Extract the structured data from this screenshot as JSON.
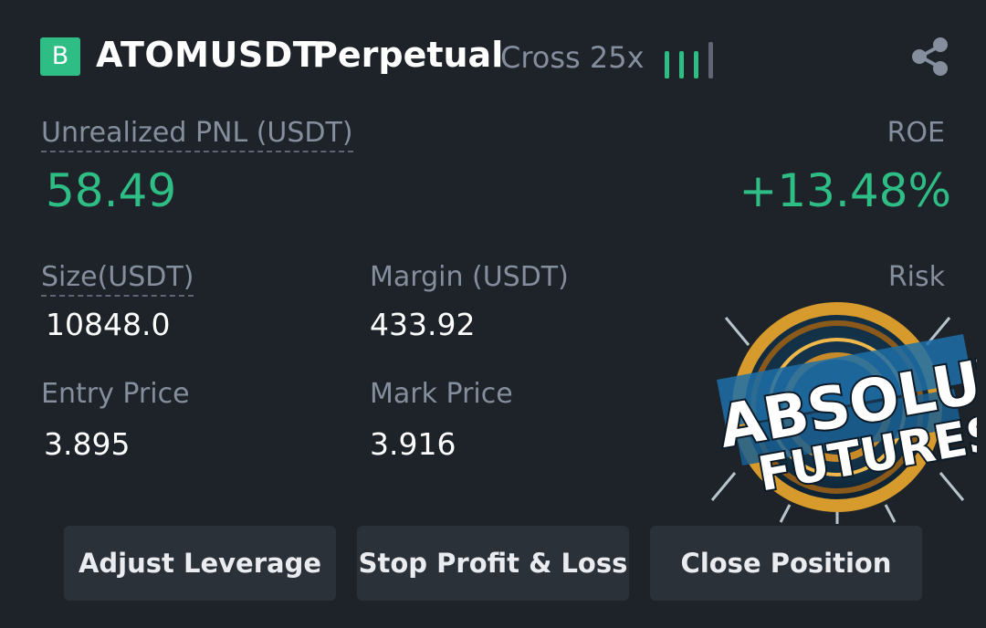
{
  "header": {
    "badge": "B",
    "symbol": "ATOMUSDT",
    "contract": "Perpetual",
    "margin_mode": "Cross 25x",
    "signal_icon": "signal-bars-icon",
    "share_icon": "share-icon"
  },
  "pnl": {
    "label": "Unrealized PNL (USDT)",
    "value": "58.49",
    "roe_label": "ROE",
    "roe_value": "+13.48%"
  },
  "stats": {
    "size_label": "Size(USDT)",
    "size_value": "10848.0",
    "margin_label": "Margin (USDT)",
    "margin_value": "433.92",
    "risk_label": "Risk",
    "risk_value": "",
    "entry_label": "Entry Price",
    "entry_value": "3.895",
    "mark_label": "Mark Price",
    "mark_value": "3.916"
  },
  "buttons": {
    "adjust": "Adjust Leverage",
    "stop": "Stop Profit & Loss",
    "close": "Close Position"
  },
  "watermark": {
    "line1": "ABSOLUTE",
    "line2": "FUTURES"
  },
  "colors": {
    "background": "#1e2329",
    "positive": "#2ebd85",
    "muted": "#848e9c",
    "button": "#2b3139"
  }
}
